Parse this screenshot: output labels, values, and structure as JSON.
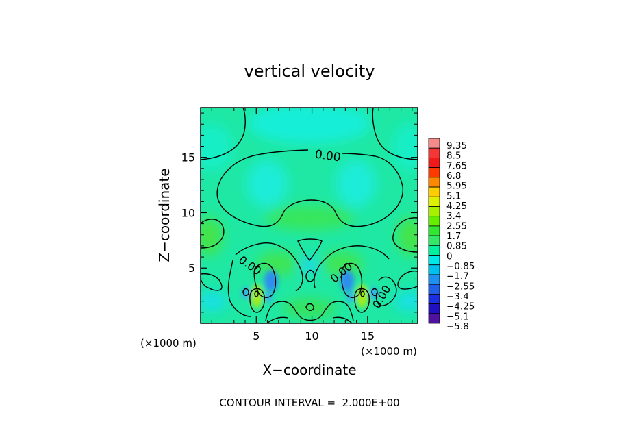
{
  "chart_data": {
    "type": "contour",
    "title": "vertical velocity",
    "xlabel": "X−coordinate",
    "ylabel": "Z−coordinate",
    "x_unit_label": "(×1000 m)",
    "y_unit_label": "(×1000 m)",
    "xlim": [
      0,
      19.5
    ],
    "ylim": [
      0,
      19.5
    ],
    "x_ticks": [
      5,
      10,
      15
    ],
    "y_ticks": [
      5,
      10,
      15
    ],
    "colorbar_levels": [
      "9.35",
      "8.5",
      "7.65",
      "6.8",
      "5.95",
      "5.1",
      "4.25",
      "3.4",
      "2.55",
      "1.7",
      "0.85",
      "0",
      "−0.85",
      "−1.7",
      "−2.55",
      "−3.4",
      "−4.25",
      "−5.1",
      "−5.8"
    ],
    "colorbar_colors": [
      "#f48a8a",
      "#f43636",
      "#f01a1a",
      "#ff3a00",
      "#ff8800",
      "#ffcc00",
      "#ddf000",
      "#a6f000",
      "#66ee00",
      "#33e633",
      "#33e866",
      "#00f0a0",
      "#00e8e8",
      "#00c0ee",
      "#2090f0",
      "#2060e8",
      "#1a30e0",
      "#2010c0",
      "#5010a0"
    ],
    "contour_labels": [
      "0.00",
      "0.00",
      "0.00",
      "0.00"
    ],
    "contour_interval_text": "CONTOUR INTERVAL =  2.000E+00"
  }
}
